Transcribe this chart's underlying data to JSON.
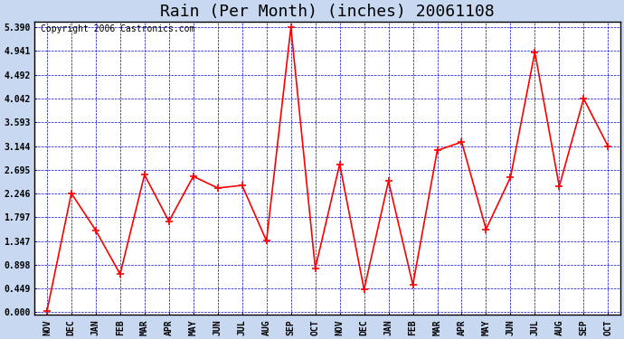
{
  "title": "Rain (Per Month) (inches) 20061108",
  "copyright": "Copyright 2006 Castronics.com",
  "categories": [
    "NOV",
    "DEC",
    "JAN",
    "FEB",
    "MAR",
    "APR",
    "MAY",
    "JUN",
    "JUL",
    "AUG",
    "SEP",
    "OCT",
    "NOV",
    "DEC",
    "JAN",
    "FEB",
    "MAR",
    "APR",
    "MAY",
    "JUN",
    "JUL",
    "AUG",
    "SEP",
    "OCT"
  ],
  "values": [
    0.02,
    2.25,
    1.55,
    0.72,
    2.6,
    1.72,
    2.57,
    2.35,
    2.4,
    1.35,
    5.39,
    0.83,
    2.8,
    0.43,
    2.48,
    0.52,
    3.06,
    3.22,
    1.57,
    2.55,
    4.92,
    2.38,
    4.04,
    3.14
  ],
  "line_color": "#FF0000",
  "marker": "+",
  "marker_color": "#FF0000",
  "marker_size": 6,
  "marker_linewidth": 1.2,
  "line_width": 1.2,
  "fig_background_color": "#C8D8F0",
  "plot_background": "#FFFFFF",
  "grid_color": "#0000CC",
  "grid_style": "--",
  "grid_linewidth": 0.5,
  "yticks": [
    0.0,
    0.449,
    0.898,
    1.347,
    1.797,
    2.246,
    2.695,
    3.144,
    3.593,
    4.042,
    4.492,
    4.941,
    5.39
  ],
  "ylim": [
    -0.05,
    5.5
  ],
  "title_fontsize": 13,
  "copyright_fontsize": 7,
  "tick_fontsize": 7,
  "border_color": "#000000"
}
